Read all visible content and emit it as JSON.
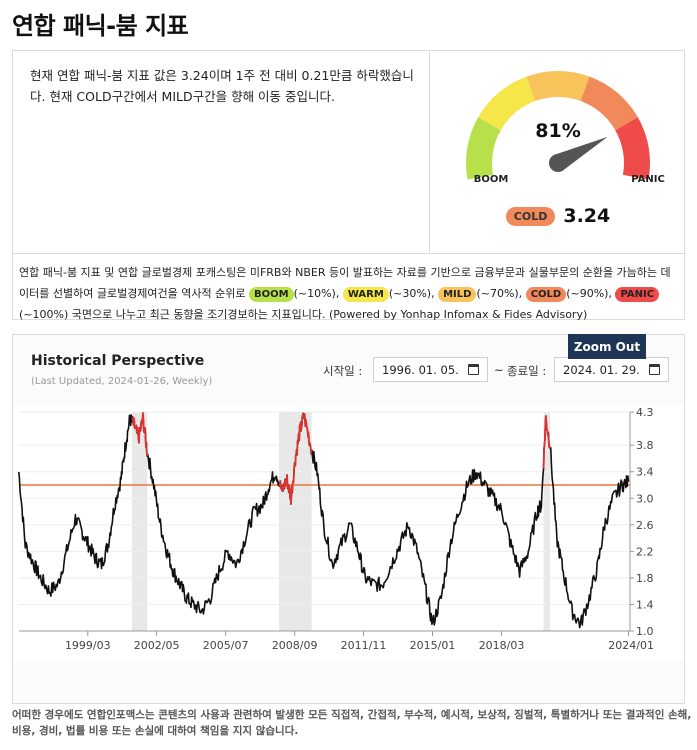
{
  "page": {
    "title": "연합 패닉-붐 지표"
  },
  "summary": {
    "text": "현재 연합 패닉-붐 지표 값은 3.24이며 1주 전 대비 0.21만큼 하락했습니다. 현재 COLD구간에서 MILD구간을 향해 이동 중입니다."
  },
  "gauge": {
    "percent_label": "81%",
    "percent": 81,
    "left_label": "BOOM",
    "right_label": "PANIC",
    "current_level": "COLD",
    "current_value": "3.24",
    "segment_colors": [
      "#b8e04a",
      "#f5e64a",
      "#f7c35a",
      "#f2895a",
      "#ef4b4b"
    ],
    "needle_color": "#555555"
  },
  "description": {
    "part1": "연합 패닉-붐 지표 및 연합 글로벌경제 포캐스팅은 미FRB와 NBER 등이 발표하는 자료를 기반으로 금융부문과 실물부문의 순환을 가늠하는 데이터를 선별하여 글로벌경제여건을 역사적 순위로",
    "boom": "BOOM",
    "boom_range": "(~10%),",
    "warm": "WARM",
    "warm_range": "(~30%),",
    "mild": "MILD",
    "mild_range": "(~70%),",
    "cold": "COLD",
    "cold_range": "(~90%),",
    "panic": "PANIC",
    "part2": "(~100%) 국면으로 나누고 최근 동향을 조기경보하는 지표입니다. (Powered by Yonhap Infomax & Fides Advisory)"
  },
  "history": {
    "title": "Historical Perspective",
    "updated": "(Last Updated, 2024-01-26, Weekly)",
    "start_label": "시작일 :",
    "start_date": "1996. 01. 05.",
    "tilde": "~",
    "end_label": "종료일 :",
    "end_date": "2024. 01. 29.",
    "zoom_out": "Zoom Out"
  },
  "chart_data": {
    "type": "line",
    "x_range": [
      "1996-01-05",
      "2024-01-26"
    ],
    "ylim": [
      1.0,
      4.3
    ],
    "y_ticks": [
      "4.3",
      "3.8",
      "3.4",
      "3.0",
      "2.6",
      "2.2",
      "1.8",
      "1.4",
      "1.0"
    ],
    "y_tick_values": [
      4.3,
      3.8,
      3.4,
      3.0,
      2.6,
      2.2,
      1.8,
      1.4,
      1.0
    ],
    "x_ticks": [
      "1999/03",
      "2002/05",
      "2005/07",
      "2008/09",
      "2011/11",
      "2015/01",
      "2018/03",
      "2024/01"
    ],
    "x_tick_years": [
      1999.17,
      2002.33,
      2005.5,
      2008.67,
      2011.83,
      2015.0,
      2018.17,
      2024.0
    ],
    "threshold": 3.2,
    "threshold_color": "#e8763a",
    "line_color": "#111111",
    "panic_color": "#e03030",
    "panic_threshold": 3.8,
    "grid": true,
    "shaded_periods": [
      [
        2001.2,
        2001.9
      ],
      [
        2007.95,
        2009.45
      ],
      [
        2020.1,
        2020.4
      ]
    ],
    "series": [
      {
        "x": [
          1996.0,
          1996.3,
          1996.7,
          1997.0,
          1997.4,
          1997.8,
          1998.2,
          1998.6,
          1998.9,
          1999.2,
          1999.5,
          1999.8,
          2000.1,
          2000.4,
          2000.7,
          2000.9,
          2001.1,
          2001.3,
          2001.5,
          2001.7,
          2001.9,
          2002.2,
          2002.5,
          2002.8,
          2003.1,
          2003.4,
          2003.7,
          2004.0,
          2004.4,
          2004.8,
          2005.2,
          2005.6,
          2006.0,
          2006.4,
          2006.8,
          2007.2,
          2007.5,
          2007.8,
          2008.1,
          2008.3,
          2008.5,
          2008.7,
          2008.9,
          2009.1,
          2009.4,
          2009.7,
          2010.0,
          2010.4,
          2010.8,
          2011.2,
          2011.6,
          2011.9,
          2012.3,
          2012.7,
          2013.1,
          2013.5,
          2013.9,
          2014.3,
          2014.7,
          2015.0,
          2015.4,
          2015.8,
          2016.2,
          2016.6,
          2017.0,
          2017.4,
          2017.8,
          2018.2,
          2018.6,
          2019.0,
          2019.4,
          2019.8,
          2020.0,
          2020.2,
          2020.4,
          2020.7,
          2021.0,
          2021.4,
          2021.8,
          2022.2,
          2022.6,
          2022.9,
          2023.3,
          2023.7,
          2024.0
        ],
        "values": [
          3.4,
          2.3,
          2.0,
          1.8,
          1.6,
          1.7,
          2.2,
          2.7,
          2.5,
          2.3,
          2.1,
          2.0,
          2.3,
          2.9,
          3.3,
          3.8,
          4.2,
          4.1,
          3.9,
          4.2,
          3.7,
          3.2,
          2.6,
          2.2,
          1.9,
          1.7,
          1.5,
          1.4,
          1.3,
          1.5,
          1.9,
          2.2,
          2.0,
          2.4,
          2.8,
          2.9,
          3.2,
          3.4,
          3.1,
          3.3,
          3.0,
          3.6,
          4.0,
          4.25,
          3.8,
          3.4,
          2.6,
          2.0,
          2.3,
          2.6,
          2.2,
          1.8,
          1.7,
          1.7,
          2.0,
          2.3,
          2.6,
          2.2,
          1.6,
          1.1,
          1.5,
          2.3,
          2.8,
          3.2,
          3.4,
          3.2,
          3.0,
          2.8,
          2.3,
          1.9,
          2.2,
          2.8,
          2.9,
          4.2,
          3.8,
          2.4,
          1.9,
          1.3,
          1.1,
          1.5,
          2.0,
          2.6,
          3.0,
          3.2,
          3.25
        ]
      }
    ]
  },
  "footer": {
    "disclaimer": "어떠한 경우에도 연합인포맥스는 콘텐츠의 사용과 관련하여 발생한 모든 직접적, 간접적, 부수적, 예시적, 보상적, 징벌적, 특별하거나 또는 결과적인 손해, 비용, 경비, 법률 비용 또는 손실에 대하여 책임을 지지 않습니다."
  }
}
